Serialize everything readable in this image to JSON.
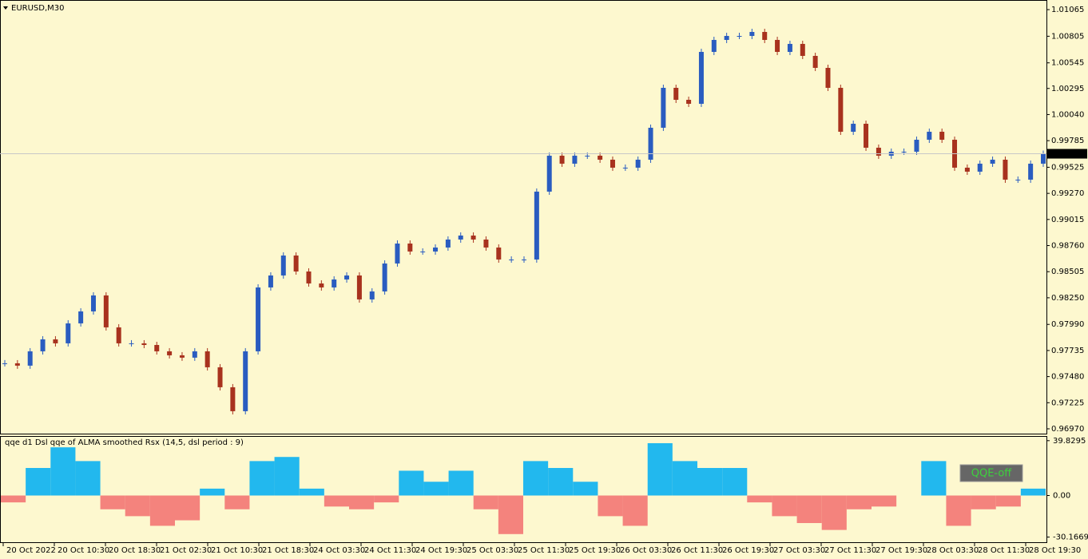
{
  "window": {
    "symbol": "EURUSD,M30",
    "indicator_title": "qqe d1 Dsl qqe of ALMA smoothed Rsx (14,5, dsl period : 9)",
    "button": "QQE-off"
  },
  "chart_data": [
    {
      "type": "candlestick",
      "current_price": 0.99657,
      "ylim": [
        0.96923,
        1.01159
      ],
      "yticks": [
        1.01065,
        1.00805,
        1.00545,
        1.00295,
        {
          "value": 1.0004,
          "label": "1.00040"
        },
        0.99785,
        0.99525,
        {
          "value": 0.9927,
          "label": "0.99270"
        },
        0.99015,
        {
          "value": 0.9876,
          "label": "0.98760"
        },
        0.98505,
        {
          "value": 0.9825,
          "label": "0.98250"
        },
        {
          "value": 0.9799,
          "label": "0.97990"
        },
        0.97735,
        {
          "value": 0.9748,
          "label": "0.97480"
        },
        0.97225,
        {
          "value": 0.9697,
          "label": "0.96970"
        }
      ],
      "x_labels": [
        "20 Oct 2022",
        "20 Oct 10:30",
        "20 Oct 18:30",
        "21 Oct 02:30",
        "21 Oct 10:30",
        "21 Oct 18:30",
        "24 Oct 03:30",
        "24 Oct 11:30",
        "24 Oct 19:30",
        "25 Oct 03:30",
        "25 Oct 11:30",
        "25 Oct 19:30",
        "26 Oct 03:30",
        "26 Oct 11:30",
        "26 Oct 19:30",
        "27 Oct 03:30",
        "27 Oct 11:30",
        "27 Oct 19:30",
        "28 Oct 03:30",
        "28 Oct 11:30",
        "28 Oct 19:30"
      ],
      "values": [
        0.9761,
        0.97587,
        0.97727,
        0.97844,
        0.97805,
        0.98,
        0.98117,
        0.98273,
        0.97961,
        0.97805,
        0.97805,
        0.97789,
        0.97727,
        0.97688,
        0.97665,
        0.97727,
        0.97571,
        0.97376,
        0.97142,
        0.97727,
        0.98351,
        0.98468,
        0.98663,
        0.98507,
        0.9839,
        0.98351,
        0.98429,
        0.98468,
        0.98234,
        0.98312,
        0.98585,
        0.9878,
        0.98702,
        0.98702,
        0.98741,
        0.98819,
        0.98858,
        0.98819,
        0.98741,
        0.98624,
        0.98624,
        0.98624,
        0.99287,
        0.99638,
        0.9956,
        0.99638,
        0.99638,
        0.99599,
        0.99521,
        0.99521,
        0.99599,
        0.99911,
        1.00301,
        1.00184,
        1.00145,
        1.00652,
        1.00769,
        1.00808,
        1.00808,
        1.00847,
        1.00769,
        1.00652,
        1.0073,
        1.00613,
        1.00496,
        1.00301,
        0.99872,
        0.9995,
        0.99716,
        0.99638,
        0.99677,
        0.99677,
        0.99794,
        0.99872,
        0.99794,
        0.99521,
        0.99482,
        0.9956,
        0.99599,
        0.99404,
        0.99404,
        0.9956,
        0.99657
      ],
      "up_color": "#2a5cc0",
      "down_color": "#a8321e"
    },
    {
      "type": "histogram",
      "ylim": [
        -34.5,
        43.2
      ],
      "yticks": [
        39.8295,
        {
          "value": 0,
          "label": "0.00"
        },
        -30.1669
      ],
      "values": [
        -5,
        20,
        35,
        25,
        -10,
        -15,
        -22,
        -18,
        5,
        -10,
        25,
        28,
        5,
        -8,
        -10,
        -5,
        18,
        10,
        18,
        -10,
        -28,
        25,
        20,
        10,
        -15,
        -22,
        38,
        25,
        20,
        20,
        -5,
        -15,
        -20,
        -25,
        -10,
        -8,
        0,
        25,
        -22,
        -10,
        -8,
        5
      ],
      "positive_color": "#22b8ee",
      "negative_color": "#f4837d"
    }
  ]
}
